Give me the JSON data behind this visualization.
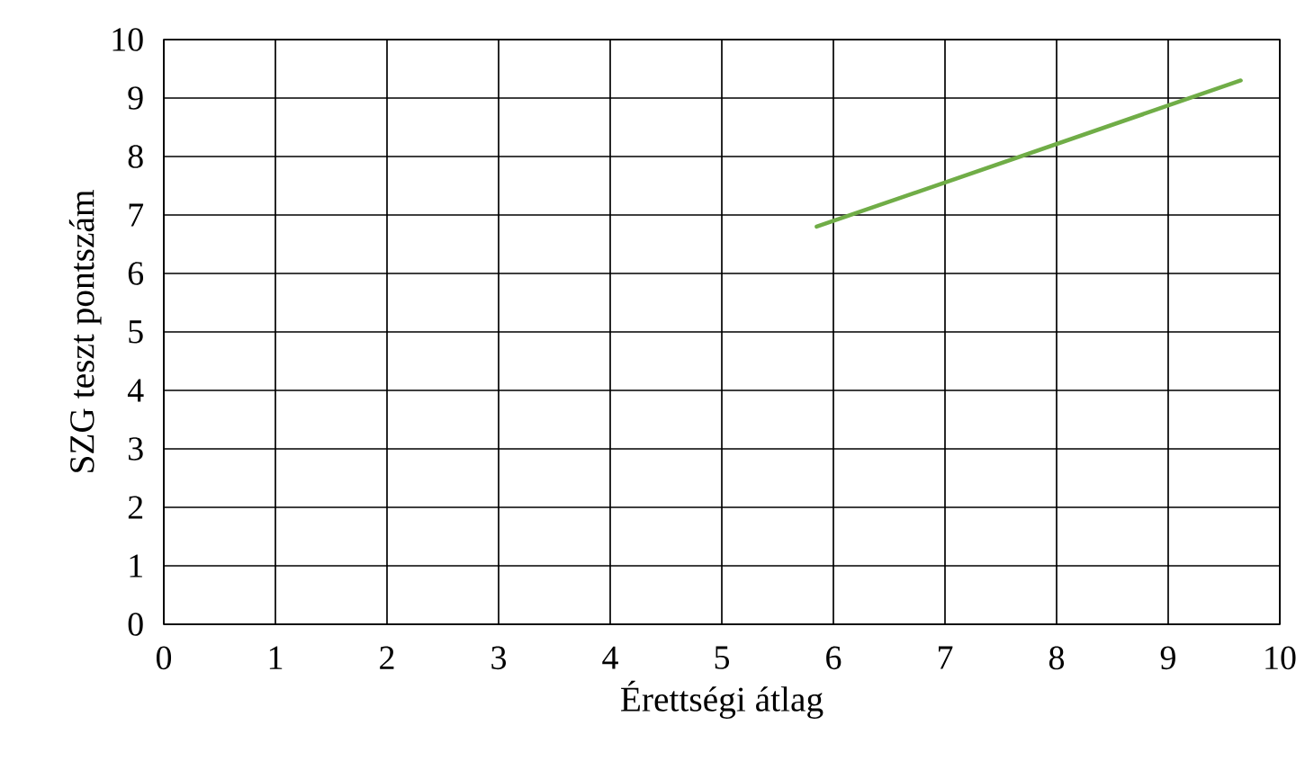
{
  "chart_data": {
    "type": "line",
    "xlabel": "Érettségi átlag",
    "ylabel": "SZG teszt pontszám",
    "series": [
      {
        "color": "#70ad47",
        "x": [
          5.85,
          9.65
        ],
        "values": [
          6.8,
          9.3
        ]
      }
    ],
    "xlim": [
      0,
      10
    ],
    "ylim": [
      0,
      10
    ],
    "xticks": [
      0,
      1,
      2,
      3,
      4,
      5,
      6,
      7,
      8,
      9,
      10
    ],
    "yticks": [
      0,
      1,
      2,
      3,
      4,
      5,
      6,
      7,
      8,
      9,
      10
    ],
    "grid": true,
    "marker": "none",
    "line_style": "solid"
  }
}
